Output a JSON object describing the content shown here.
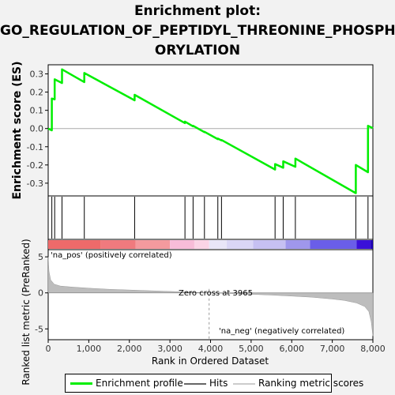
{
  "title_lines": [
    "Enrichment plot:",
    "GO_REGULATION_OF_PEPTIDYL_THREONINE_PHOSPH",
    "ORYLATION"
  ],
  "colors": {
    "enrichment": "#00ee00",
    "hits": "#000000",
    "metric_fill": "#bdbdbd",
    "pos_label": "#dd0000",
    "neg_label": "#0000cc",
    "zero_line": "#aaaaaa"
  },
  "chart_data": [
    {
      "type": "line",
      "name": "enrichment-profile",
      "ylabel": "Enrichment score (ES)",
      "xlim": [
        0,
        8000
      ],
      "ylim": [
        -0.37,
        0.35
      ],
      "yticks": [
        -0.3,
        -0.2,
        -0.1,
        0.0,
        0.1,
        0.2,
        0.3
      ],
      "ytick_labels": [
        "-0.3",
        "-0.2",
        "-0.1",
        "0.0",
        "0.1",
        "0.2",
        "0.3"
      ],
      "grid": false,
      "x": [
        0,
        90,
        90,
        160,
        160,
        340,
        340,
        890,
        890,
        2130,
        2130,
        3370,
        3370,
        3570,
        3570,
        3850,
        3850,
        4180,
        4180,
        4270,
        4270,
        5590,
        5590,
        5790,
        5790,
        6090,
        6090,
        7580,
        7580,
        7880,
        7880,
        8000
      ],
      "y": [
        0.0,
        -0.01,
        0.165,
        0.16,
        0.27,
        0.25,
        0.325,
        0.255,
        0.305,
        0.155,
        0.185,
        0.03,
        0.038,
        0.012,
        0.015,
        -0.02,
        -0.018,
        -0.058,
        -0.055,
        -0.065,
        -0.063,
        -0.225,
        -0.195,
        -0.215,
        -0.18,
        -0.21,
        -0.165,
        -0.355,
        -0.2,
        -0.24,
        0.015,
        0.002
      ]
    },
    {
      "type": "scatter",
      "name": "hits",
      "x": [
        90,
        160,
        340,
        890,
        2130,
        3370,
        3570,
        3850,
        4180,
        4270,
        5590,
        5790,
        6090,
        7580,
        7880
      ]
    },
    {
      "type": "area",
      "name": "ranked-list-metric",
      "ylabel": "Ranked list metric (PreRanked)",
      "xlabel": "Rank in Ordered Dataset",
      "xlim": [
        0,
        8000
      ],
      "ylim": [
        -6.5,
        6
      ],
      "yticks": [
        -5,
        0,
        5
      ],
      "ytick_labels": [
        "-5",
        "0",
        "5"
      ],
      "xticks": [
        0,
        1000,
        2000,
        3000,
        4000,
        5000,
        6000,
        7000,
        8000
      ],
      "xtick_labels": [
        "0",
        "1,000",
        "2,000",
        "3,000",
        "4,000",
        "5,000",
        "6,000",
        "7,000",
        "8,000"
      ],
      "x": [
        0,
        20,
        60,
        150,
        300,
        600,
        1000,
        1500,
        2000,
        2500,
        3000,
        3500,
        3965,
        4500,
        5000,
        5500,
        6000,
        6500,
        7000,
        7300,
        7600,
        7800,
        7900,
        7960,
        8000
      ],
      "y": [
        5.0,
        3.0,
        1.8,
        1.2,
        0.95,
        0.8,
        0.65,
        0.5,
        0.4,
        0.3,
        0.2,
        0.1,
        0.0,
        -0.1,
        -0.2,
        -0.3,
        -0.45,
        -0.6,
        -0.85,
        -1.05,
        -1.4,
        -1.9,
        -2.6,
        -4.0,
        -6.0
      ],
      "annotations": {
        "zero_cross": "Zero cross at 3965",
        "zero_cross_x": 3965,
        "pos": "'na_pos' (positively correlated)",
        "neg": "'na_neg' (negatively correlated)"
      }
    }
  ],
  "color_bar": [
    {
      "x0": 0,
      "x1": 1300,
      "color": "#ee6a6a"
    },
    {
      "x0": 1300,
      "x1": 2150,
      "color": "#f07a7e"
    },
    {
      "x0": 2150,
      "x1": 3000,
      "color": "#f49a9e"
    },
    {
      "x0": 3000,
      "x1": 3600,
      "color": "#f8bcd8"
    },
    {
      "x0": 3600,
      "x1": 3965,
      "color": "#fbd4e6"
    },
    {
      "x0": 3965,
      "x1": 4400,
      "color": "#e9e6f8"
    },
    {
      "x0": 4400,
      "x1": 5050,
      "color": "#dad6f6"
    },
    {
      "x0": 5050,
      "x1": 5850,
      "color": "#c6c0f2"
    },
    {
      "x0": 5850,
      "x1": 6450,
      "color": "#9f97ec"
    },
    {
      "x0": 6450,
      "x1": 7600,
      "color": "#6a5ee8"
    },
    {
      "x0": 7600,
      "x1": 7950,
      "color": "#3a10d8"
    },
    {
      "x0": 7950,
      "x1": 8000,
      "color": "#1a00b0"
    }
  ],
  "legend": {
    "enrichment_label": "Enrichment profile",
    "hits_label": "Hits",
    "metric_label": "Ranking metric scores"
  }
}
